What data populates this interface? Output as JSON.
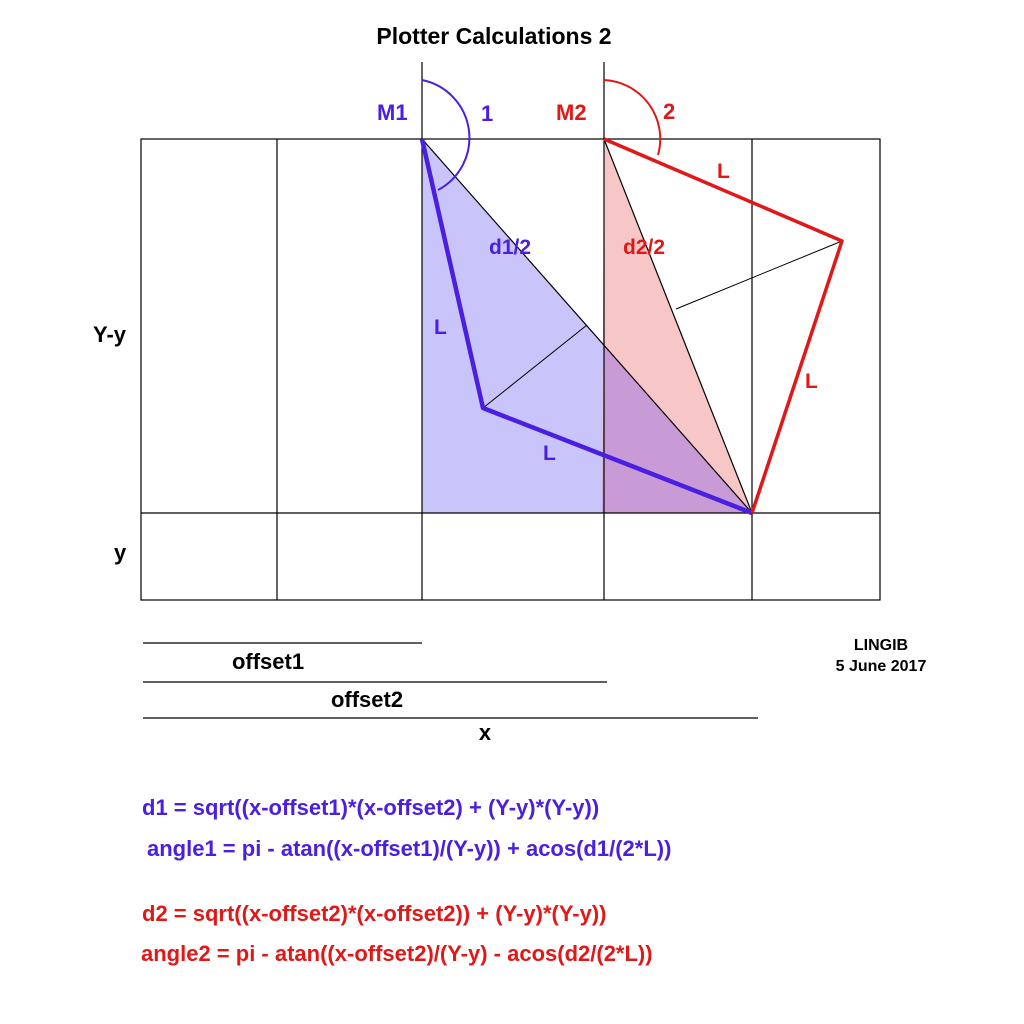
{
  "title": "Plotter Calculations 2",
  "colors": {
    "blue": "#4a1fe0",
    "red": "#e01818",
    "blue_fill": "#c9c4fa",
    "red_fill": "#f7c3c3",
    "overlap_fill": "#c89bd6",
    "black": "#000000"
  },
  "labels": {
    "m1": "M1",
    "m2": "M2",
    "angle1": "1",
    "angle2": "2",
    "d1_half": "d1/2",
    "d2_half": "d2/2",
    "l_blue_upper": "L",
    "l_blue_lower": "L",
    "l_red_upper": "L",
    "l_red_lower": "L",
    "height": "Y-y",
    "y": "y",
    "offset1": "offset1",
    "offset2": "offset2",
    "x": "x"
  },
  "credit": {
    "author": "LINGIB",
    "date": "5 June 2017"
  },
  "formulas": {
    "d1": "d1 = sqrt((x-offset1)*(x-offset2) + (Y-y)*(Y-y))",
    "angle1": "angle1 = pi - atan((x-offset1)/(Y-y)) + acos(d1/(2*L))",
    "d2": "d2 = sqrt((x-offset2)*(x-offset2)) + (Y-y)*(Y-y))",
    "angle2": "angle2 = pi - atan((x-offset2)/(Y-y) - acos(d2/(2*L))"
  }
}
